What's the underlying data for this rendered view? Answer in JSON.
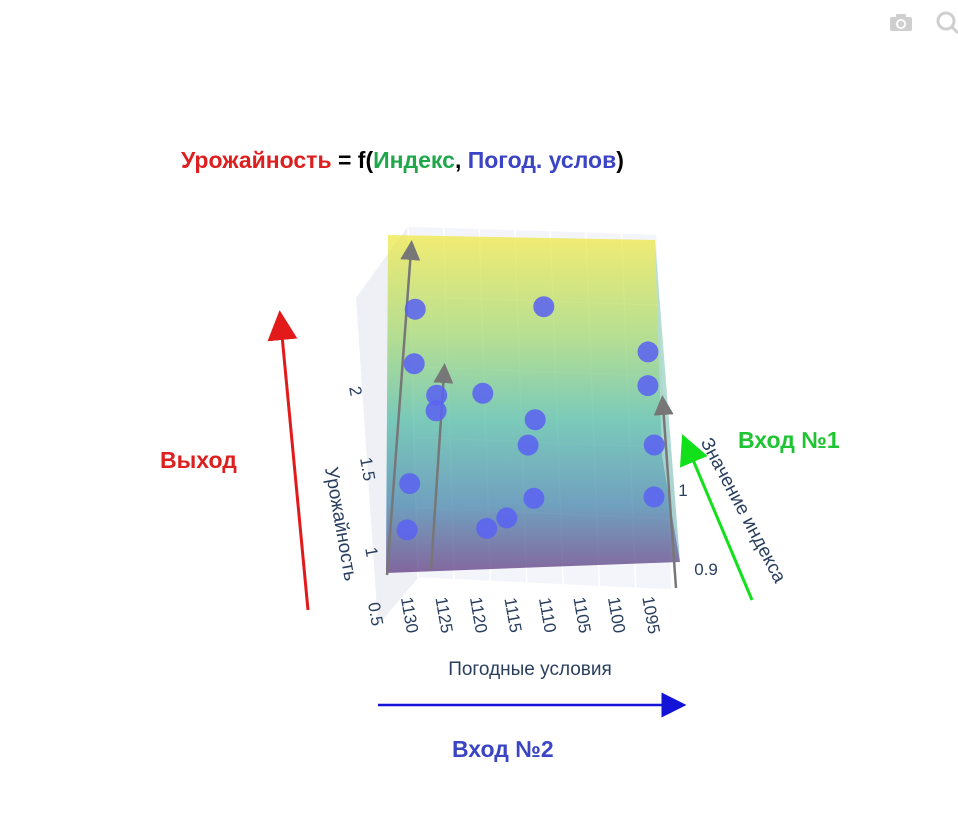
{
  "toolbar": {
    "camera_icon": "camera-icon",
    "zoom_icon": "zoom-icon"
  },
  "title_parts": [
    {
      "text": "Урожайность",
      "color": "#dd1f1f"
    },
    {
      "text": " = f(",
      "color": "#000000"
    },
    {
      "text": "Индекс",
      "color": "#1ea84a"
    },
    {
      "text": ", ",
      "color": "#000000"
    },
    {
      "text": "Погод. услов",
      "color": "#3b44c4"
    },
    {
      "text": ")",
      "color": "#000000"
    }
  ],
  "annotations": {
    "output": {
      "text": "Выход",
      "color": "#dd1f1f"
    },
    "input1": {
      "text": "Вход №1",
      "color": "#1ec432"
    },
    "input2": {
      "text": "Вход №2",
      "color": "#3b44c4"
    }
  },
  "chart_data": {
    "type": "scatter3d_surface",
    "axes": {
      "x": {
        "label": "Погодные условия",
        "ticks": [
          "1130",
          "1125",
          "1120",
          "1115",
          "1110",
          "1105",
          "1100",
          "1095"
        ],
        "range": [
          1133,
          1091
        ]
      },
      "y": {
        "label": "Значение индекса",
        "ticks": [
          "0.9",
          "1"
        ],
        "range": [
          0.85,
          1.2
        ]
      },
      "z": {
        "label": "Урожайность",
        "ticks": [
          "0.5",
          "1",
          "1.5",
          "2"
        ],
        "range": [
          0.5,
          2.45
        ]
      }
    },
    "surface": {
      "colorscale": "viridis",
      "opacity": 0.55
    },
    "marker_color": "#5b63f0",
    "points": [
      {
        "x": 1131,
        "y": 1.15,
        "z": 2.35
      },
      {
        "x": 1131,
        "y": 1.12,
        "z": 2.0
      },
      {
        "x": 1127,
        "y": 1.0,
        "z": 1.72
      },
      {
        "x": 1127,
        "y": 0.98,
        "z": 1.62
      },
      {
        "x": 1120,
        "y": 1.0,
        "z": 1.67
      },
      {
        "x": 1111,
        "y": 1.1,
        "z": 2.05
      },
      {
        "x": 1112,
        "y": 0.98,
        "z": 1.45
      },
      {
        "x": 1113,
        "y": 0.95,
        "z": 1.32
      },
      {
        "x": 1131,
        "y": 0.98,
        "z": 1.2
      },
      {
        "x": 1131,
        "y": 0.9,
        "z": 0.88
      },
      {
        "x": 1119,
        "y": 0.88,
        "z": 0.86
      },
      {
        "x": 1116,
        "y": 0.88,
        "z": 0.92
      },
      {
        "x": 1112,
        "y": 0.9,
        "z": 1.02
      },
      {
        "x": 1095,
        "y": 1.12,
        "z": 1.5
      },
      {
        "x": 1095,
        "y": 1.08,
        "z": 1.36
      },
      {
        "x": 1094,
        "y": 1.0,
        "z": 1.12
      },
      {
        "x": 1094,
        "y": 0.92,
        "z": 0.94
      }
    ]
  }
}
